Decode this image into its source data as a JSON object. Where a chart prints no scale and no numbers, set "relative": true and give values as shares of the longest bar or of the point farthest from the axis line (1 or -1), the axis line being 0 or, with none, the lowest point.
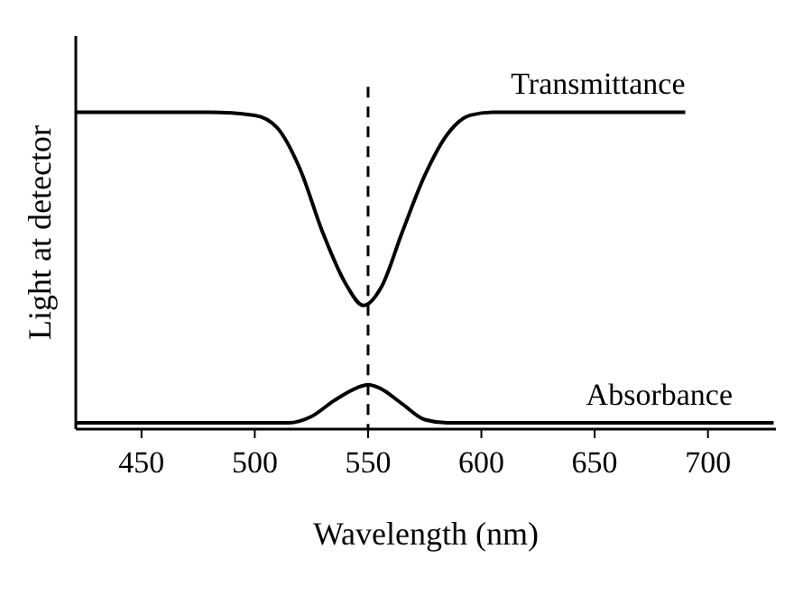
{
  "chart_data": {
    "type": "line",
    "relative": true,
    "xlabel": "Wavelength (nm)",
    "ylabel": "Light at detector",
    "xlim": [
      421,
      730
    ],
    "xticks": [
      450,
      500,
      550,
      600,
      650,
      700
    ],
    "marker": "none",
    "line_style": "solid",
    "grid": false,
    "tick_labels": "x",
    "series": [
      {
        "name": "Transmittance",
        "color": "#000000",
        "x": [
          421,
          480,
          500,
          510,
          520,
          530,
          540,
          548,
          556,
          565,
          575,
          585,
          595,
          605,
          620,
          690
        ],
        "values": [
          1,
          1,
          0.99,
          0.95,
          0.82,
          0.62,
          0.46,
          0.39,
          0.45,
          0.62,
          0.8,
          0.93,
          0.99,
          1,
          1,
          1
        ]
      },
      {
        "name": "Absorbance",
        "color": "#000000",
        "x": [
          421,
          515,
          525,
          535,
          545,
          550,
          555,
          565,
          575,
          585,
          729
        ],
        "values": [
          0.02,
          0.02,
          0.04,
          0.09,
          0.13,
          0.14,
          0.13,
          0.08,
          0.03,
          0.02,
          0.02
        ]
      }
    ],
    "ref_lines": [
      {
        "axis": "x",
        "value": 550,
        "line_style": "dashed",
        "color": "#000000"
      }
    ]
  }
}
